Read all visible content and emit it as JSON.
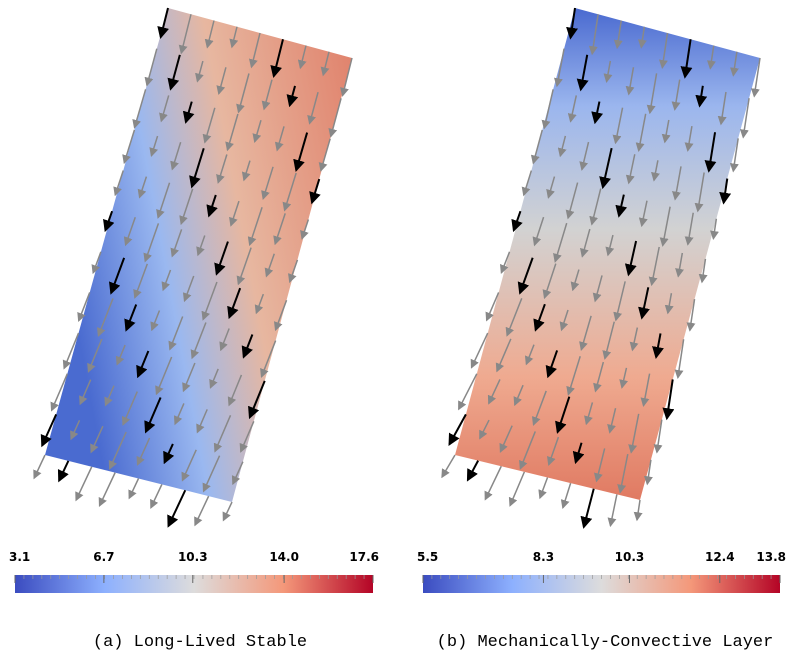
{
  "panels": [
    {
      "caption": "(a) Long-Lived Stable",
      "colorbar": {
        "range": [
          3.1,
          17.6
        ],
        "ticks": [
          3.1,
          6.7,
          10.3,
          {
            "value": 14,
            "label": "14.0"
          },
          17.6
        ]
      }
    },
    {
      "caption": "(b) Mechanically-Convective Layer",
      "colorbar": {
        "range": [
          5.5,
          13.8
        ],
        "ticks": [
          5.5,
          8.3,
          10.3,
          12.4,
          13.8
        ]
      }
    }
  ]
}
